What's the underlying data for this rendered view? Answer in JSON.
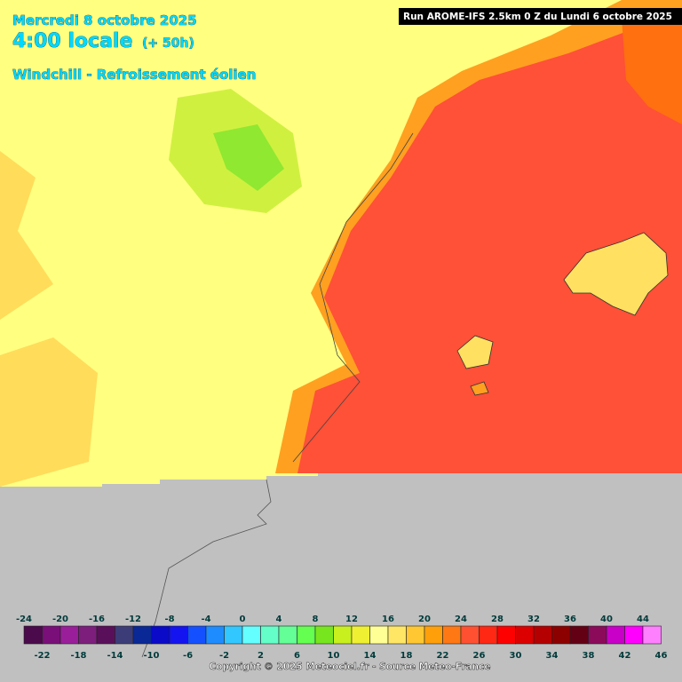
{
  "header": {
    "date": "Mercredi 8 octobre 2025",
    "time": "4:00 locale",
    "lead": "(+ 50h)",
    "product": "Windchill - Refroissement éolien"
  },
  "run_info": "Run AROME-IFS 2.5km 0 Z du Lundi 6 octobre 2025",
  "legend": {
    "ticks": [
      -24,
      -22,
      -20,
      -18,
      -16,
      -14,
      -12,
      -10,
      -8,
      -6,
      -4,
      -2,
      0,
      2,
      4,
      6,
      8,
      10,
      12,
      14,
      16,
      18,
      20,
      22,
      24,
      26,
      28,
      30,
      32,
      34,
      36,
      38,
      40,
      42,
      44,
      46
    ],
    "colors": [
      "#4b0a4b",
      "#7a0f7a",
      "#9a1e9a",
      "#7d1e7d",
      "#5a0f5a",
      "#3c3c78",
      "#0a2896",
      "#0a0ac8",
      "#1414f0",
      "#1450ff",
      "#1e8cff",
      "#32c8ff",
      "#64ffff",
      "#64ffc8",
      "#64ff96",
      "#64ff50",
      "#78e61e",
      "#c8f01e",
      "#f0f032",
      "#ffff96",
      "#ffe664",
      "#ffc832",
      "#ffa00a",
      "#ff7814",
      "#ff5032",
      "#ff2814",
      "#ff0000",
      "#dc0000",
      "#b40000",
      "#8c0000",
      "#640014",
      "#8c0a5a",
      "#c800c8",
      "#ff00ff",
      "#ff80ff"
    ]
  },
  "copyright": "Copyright © 2025 Meteociel.fr - Source Meteo-France"
}
